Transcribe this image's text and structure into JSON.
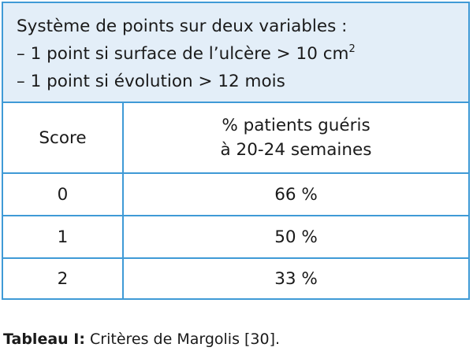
{
  "header": {
    "line1": "Système de points sur deux variables :",
    "line2_prefix": "– 1 point si surface de l’ulcère > 10 cm",
    "line2_sup": "2",
    "line3": "– 1 point si évolution > 12 mois"
  },
  "table": {
    "col1_header": "Score",
    "col2_header_line1": "% patients guéris",
    "col2_header_line2": "à 20-24 semaines",
    "rows": [
      {
        "score": "0",
        "percent": "66 %"
      },
      {
        "score": "1",
        "percent": "50 %"
      },
      {
        "score": "2",
        "percent": "33 %"
      }
    ]
  },
  "caption": {
    "label": "Tableau I:",
    "text": " Critères de Margolis [30]."
  },
  "colors": {
    "border": "#3f9ad6",
    "header_bg": "#e3eef8"
  }
}
